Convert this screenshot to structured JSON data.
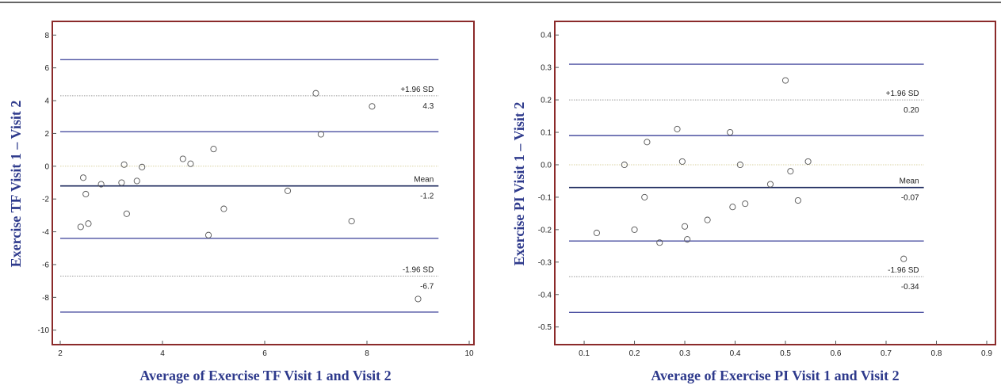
{
  "chart_data": [
    {
      "type": "scatter",
      "title": "",
      "xlabel": "Average of Exercise TF Visit 1 and Visit 2",
      "ylabel": "Exercise TF  Visit 1 – Visit 2",
      "xlim": [
        2,
        10
      ],
      "ylim": [
        -10.4,
        8.4
      ],
      "xticks": [
        2,
        4,
        6,
        8,
        10
      ],
      "yticks": [
        8,
        6,
        4,
        2,
        0,
        -2,
        -4,
        -6,
        -8,
        -10
      ],
      "grid": false,
      "legend": "none",
      "points": [
        {
          "x": 2.4,
          "y": -3.7
        },
        {
          "x": 2.45,
          "y": -0.7
        },
        {
          "x": 2.5,
          "y": -1.7
        },
        {
          "x": 2.55,
          "y": -3.5
        },
        {
          "x": 2.8,
          "y": -1.1
        },
        {
          "x": 3.2,
          "y": -1.0
        },
        {
          "x": 3.25,
          "y": 0.1
        },
        {
          "x": 3.3,
          "y": -2.9
        },
        {
          "x": 3.5,
          "y": -0.9
        },
        {
          "x": 3.6,
          "y": -0.05
        },
        {
          "x": 4.4,
          "y": 0.45
        },
        {
          "x": 4.55,
          "y": 0.15
        },
        {
          "x": 4.9,
          "y": -4.2
        },
        {
          "x": 5.0,
          "y": 1.05
        },
        {
          "x": 5.2,
          "y": -2.6
        },
        {
          "x": 6.45,
          "y": -1.5
        },
        {
          "x": 7.0,
          "y": 4.45
        },
        {
          "x": 7.1,
          "y": 1.95
        },
        {
          "x": 7.7,
          "y": -3.35
        },
        {
          "x": 8.1,
          "y": 3.65
        },
        {
          "x": 9.0,
          "y": -8.1
        }
      ],
      "lines": [
        {
          "role": "ci",
          "y": 6.5,
          "style": "solid",
          "color": "#4a4fa0"
        },
        {
          "role": "upper-loa",
          "y": 4.3,
          "style": "dotted",
          "color": "#999999",
          "label": "+1.96 SD",
          "value_label": "4.3"
        },
        {
          "role": "ci",
          "y": 2.1,
          "style": "solid",
          "color": "#4a4fa0"
        },
        {
          "role": "zero",
          "y": 0,
          "style": "dotted",
          "color": "#d8d2a0"
        },
        {
          "role": "mean",
          "y": -1.2,
          "style": "solid",
          "color": "#1e2a5e",
          "label": "Mean",
          "value_label": "-1.2"
        },
        {
          "role": "ci",
          "y": -4.4,
          "style": "solid",
          "color": "#4a4fa0"
        },
        {
          "role": "lower-loa",
          "y": -6.7,
          "style": "dotted",
          "color": "#999999",
          "label": "-1.96 SD",
          "value_label": "-6.7"
        },
        {
          "role": "ci",
          "y": -8.9,
          "style": "solid",
          "color": "#4a4fa0"
        }
      ],
      "line_x_extent": [
        2,
        9.4
      ]
    },
    {
      "type": "scatter",
      "title": "",
      "xlabel": "Average of Exercise PI Visit 1 and Visit 2",
      "ylabel": "Exercise PI  Visit 1 – Visit 2",
      "xlim": [
        0.07,
        0.9
      ],
      "ylim": [
        -0.53,
        0.42
      ],
      "xticks": [
        0.1,
        0.2,
        0.3,
        0.4,
        0.5,
        0.6,
        0.7,
        0.8,
        0.9
      ],
      "yticks": [
        0.4,
        0.3,
        0.2,
        0.1,
        0.0,
        -0.1,
        -0.2,
        -0.3,
        -0.4,
        -0.5
      ],
      "xtick_labels": [
        "0.1",
        "0.2",
        "0.3",
        "0.4",
        "0.5",
        "0.6",
        "0.7",
        "0.8",
        "0.9"
      ],
      "ytick_labels": [
        "0.4",
        "0.3",
        "0.2",
        "0.1",
        "0.0",
        "-0.1",
        "-0.2",
        "-0.3",
        "-0.4",
        "-0.5"
      ],
      "grid": false,
      "legend": "none",
      "points": [
        {
          "x": 0.125,
          "y": -0.21
        },
        {
          "x": 0.18,
          "y": 0.0
        },
        {
          "x": 0.2,
          "y": -0.2
        },
        {
          "x": 0.22,
          "y": -0.1
        },
        {
          "x": 0.225,
          "y": 0.07
        },
        {
          "x": 0.25,
          "y": -0.24
        },
        {
          "x": 0.285,
          "y": 0.11
        },
        {
          "x": 0.295,
          "y": 0.01
        },
        {
          "x": 0.3,
          "y": -0.19
        },
        {
          "x": 0.305,
          "y": -0.23
        },
        {
          "x": 0.345,
          "y": -0.17
        },
        {
          "x": 0.39,
          "y": 0.1
        },
        {
          "x": 0.395,
          "y": -0.13
        },
        {
          "x": 0.41,
          "y": 0.0
        },
        {
          "x": 0.42,
          "y": -0.12
        },
        {
          "x": 0.47,
          "y": -0.06
        },
        {
          "x": 0.5,
          "y": 0.26
        },
        {
          "x": 0.51,
          "y": -0.02
        },
        {
          "x": 0.525,
          "y": -0.11
        },
        {
          "x": 0.545,
          "y": 0.01
        },
        {
          "x": 0.735,
          "y": -0.29
        }
      ],
      "lines": [
        {
          "role": "ci",
          "y": 0.31,
          "style": "solid",
          "color": "#4a4fa0"
        },
        {
          "role": "upper-loa",
          "y": 0.2,
          "style": "dotted",
          "color": "#999999",
          "label": "+1.96 SD",
          "value_label": "0.20"
        },
        {
          "role": "ci",
          "y": 0.09,
          "style": "solid",
          "color": "#4a4fa0"
        },
        {
          "role": "zero",
          "y": 0,
          "style": "dotted",
          "color": "#d8d2a0"
        },
        {
          "role": "mean",
          "y": -0.07,
          "style": "solid",
          "color": "#1e2a5e",
          "label": "Mean",
          "value_label": "-0.07"
        },
        {
          "role": "ci",
          "y": -0.235,
          "style": "solid",
          "color": "#4a4fa0"
        },
        {
          "role": "lower-loa",
          "y": -0.345,
          "style": "dotted",
          "color": "#999999",
          "label": "-1.96 SD",
          "value_label": "-0.34"
        },
        {
          "role": "ci",
          "y": -0.455,
          "style": "solid",
          "color": "#4a4fa0"
        }
      ],
      "line_x_extent": [
        0.07,
        0.775
      ]
    }
  ],
  "colors": {
    "frame": "#8b2a2a",
    "axis_title": "#2e3a8c",
    "point_stroke": "#555555"
  }
}
